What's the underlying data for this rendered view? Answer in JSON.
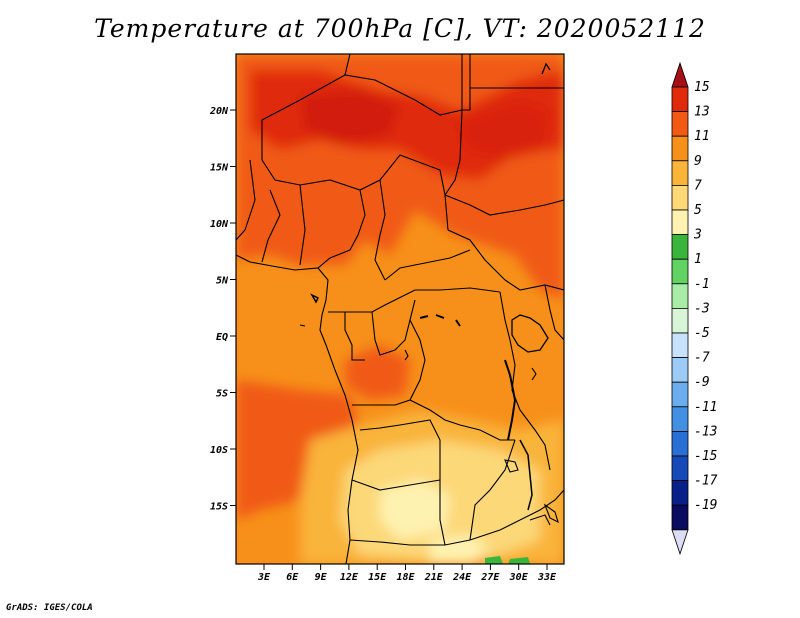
{
  "title": "Temperature at 700hPa [C], VT: 2020052112",
  "credit": "GrADS: IGES/COLA",
  "map": {
    "lon_labels": [
      "3E",
      "6E",
      "9E",
      "12E",
      "15E",
      "18E",
      "21E",
      "24E",
      "27E",
      "30E",
      "33E"
    ],
    "lat_labels": [
      "20N",
      "15N",
      "10N",
      "5N",
      "EQ",
      "5S",
      "10S",
      "15S"
    ]
  },
  "colorbar": {
    "labels": [
      "15",
      "13",
      "11",
      "9",
      "7",
      "5",
      "3",
      "1",
      "-1",
      "-3",
      "-5",
      "-7",
      "-9",
      "-11",
      "-13",
      "-15",
      "-17",
      "-19"
    ],
    "colors": [
      "#a50f15",
      "#e02a0a",
      "#f05a14",
      "#f7901a",
      "#f9b43a",
      "#fcd878",
      "#fef2b0",
      "#3ab43a",
      "#62d262",
      "#a8eca8",
      "#d8f5d8",
      "#c6e3fb",
      "#9ccbf5",
      "#6cadee",
      "#4290e2",
      "#2a6fd6",
      "#1648b8",
      "#08208a",
      "#0a0a5e",
      "#dcdcf4"
    ]
  }
}
